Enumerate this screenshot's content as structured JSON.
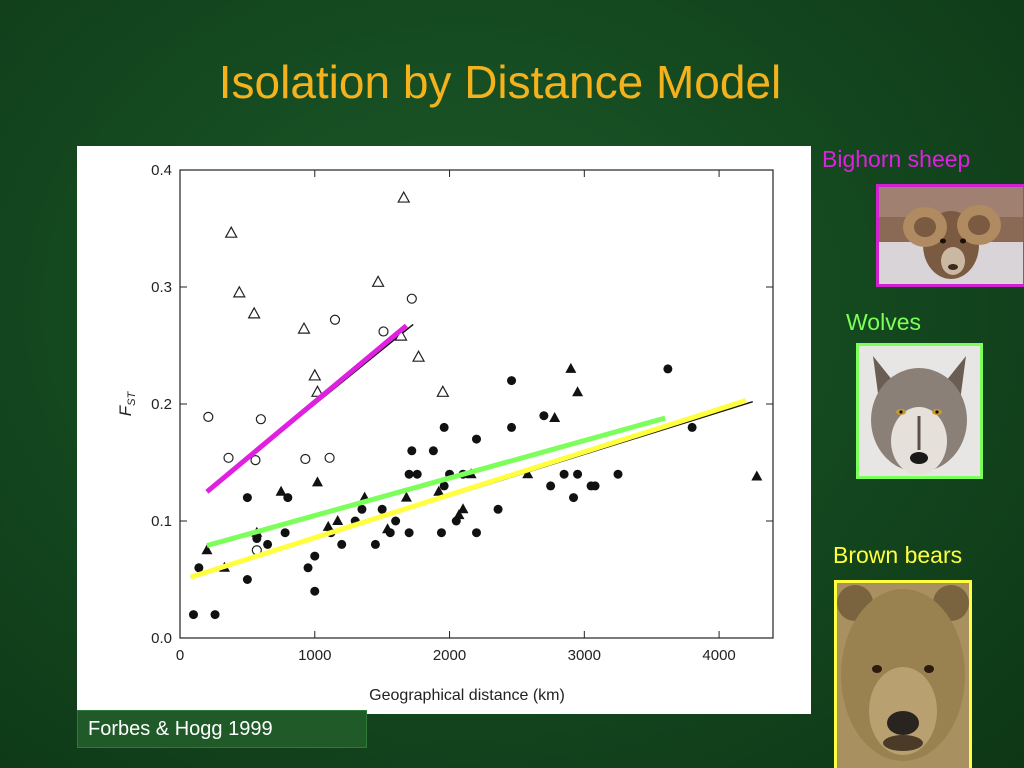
{
  "slide": {
    "title": "Isolation by Distance Model",
    "citation": "Forbes & Hogg 1999"
  },
  "species": [
    {
      "label": "Bighorn sheep",
      "color": "#e020e0",
      "icon": "bighorn-sheep-photo"
    },
    {
      "label": "Wolves",
      "color": "#7cff5a",
      "icon": "wolf-photo"
    },
    {
      "label": "Brown bears",
      "color": "#ffff40",
      "icon": "brown-bear-photo"
    }
  ],
  "chart_data": {
    "type": "scatter",
    "xlabel": "Geographical distance (km)",
    "ylabel": "F",
    "ylabel_subscript": "ST",
    "xlim": [
      0,
      4400
    ],
    "ylim": [
      0,
      0.4
    ],
    "x_ticks": [
      0,
      1000,
      2000,
      3000,
      4000
    ],
    "y_ticks": [
      0.0,
      0.1,
      0.2,
      0.3,
      0.4
    ],
    "x_tick_labels": [
      "0",
      "1000",
      "2000",
      "3000",
      "4000"
    ],
    "y_tick_labels": [
      "0.0",
      "0.1",
      "0.2",
      "0.3",
      "0.4"
    ],
    "series": [
      {
        "marker": "open-circle",
        "points": [
          [
            210,
            0.189
          ],
          [
            360,
            0.154
          ],
          [
            600,
            0.187
          ],
          [
            560,
            0.152
          ],
          [
            930,
            0.153
          ],
          [
            1150,
            0.272
          ],
          [
            1110,
            0.154
          ],
          [
            1510,
            0.262
          ],
          [
            1720,
            0.29
          ],
          [
            570,
            0.075
          ]
        ]
      },
      {
        "marker": "open-triangle",
        "points": [
          [
            380,
            0.346
          ],
          [
            440,
            0.295
          ],
          [
            550,
            0.277
          ],
          [
            920,
            0.264
          ],
          [
            1000,
            0.224
          ],
          [
            1020,
            0.21
          ],
          [
            1470,
            0.304
          ],
          [
            1660,
            0.376
          ],
          [
            1770,
            0.24
          ],
          [
            1950,
            0.21
          ],
          [
            1640,
            0.258
          ]
        ]
      },
      {
        "marker": "filled-circle",
        "points": [
          [
            100,
            0.02
          ],
          [
            260,
            0.02
          ],
          [
            140,
            0.06
          ],
          [
            500,
            0.12
          ],
          [
            500,
            0.05
          ],
          [
            570,
            0.085
          ],
          [
            650,
            0.08
          ],
          [
            780,
            0.09
          ],
          [
            800,
            0.12
          ],
          [
            950,
            0.06
          ],
          [
            1000,
            0.04
          ],
          [
            1000,
            0.07
          ],
          [
            1120,
            0.09
          ],
          [
            1200,
            0.08
          ],
          [
            1300,
            0.1
          ],
          [
            1350,
            0.11
          ],
          [
            1450,
            0.08
          ],
          [
            1500,
            0.11
          ],
          [
            1560,
            0.09
          ],
          [
            1600,
            0.1
          ],
          [
            1700,
            0.09
          ],
          [
            1700,
            0.14
          ],
          [
            1720,
            0.16
          ],
          [
            1760,
            0.14
          ],
          [
            1880,
            0.16
          ],
          [
            1940,
            0.09
          ],
          [
            1960,
            0.18
          ],
          [
            1960,
            0.13
          ],
          [
            2000,
            0.14
          ],
          [
            2050,
            0.1
          ],
          [
            2100,
            0.14
          ],
          [
            2200,
            0.17
          ],
          [
            2200,
            0.09
          ],
          [
            2360,
            0.11
          ],
          [
            2460,
            0.22
          ],
          [
            2460,
            0.18
          ],
          [
            2700,
            0.19
          ],
          [
            2750,
            0.13
          ],
          [
            2850,
            0.14
          ],
          [
            2920,
            0.12
          ],
          [
            2950,
            0.14
          ],
          [
            3050,
            0.13
          ],
          [
            3080,
            0.13
          ],
          [
            3250,
            0.14
          ],
          [
            3620,
            0.23
          ],
          [
            3800,
            0.18
          ]
        ]
      },
      {
        "marker": "filled-triangle",
        "points": [
          [
            200,
            0.075
          ],
          [
            330,
            0.06
          ],
          [
            570,
            0.09
          ],
          [
            750,
            0.125
          ],
          [
            1020,
            0.133
          ],
          [
            1100,
            0.095
          ],
          [
            1170,
            0.1
          ],
          [
            1370,
            0.12
          ],
          [
            1540,
            0.093
          ],
          [
            1680,
            0.12
          ],
          [
            1920,
            0.125
          ],
          [
            2100,
            0.11
          ],
          [
            2070,
            0.105
          ],
          [
            2160,
            0.14
          ],
          [
            2580,
            0.14
          ],
          [
            2780,
            0.188
          ],
          [
            2900,
            0.23
          ],
          [
            2950,
            0.21
          ],
          [
            4280,
            0.138
          ]
        ]
      }
    ],
    "regression_lines": [
      {
        "species": "Bighorn sheep",
        "from": [
          200,
          0.125
        ],
        "to": [
          1680,
          0.267
        ]
      },
      {
        "species": "Wolves",
        "from": [
          200,
          0.079
        ],
        "to": [
          3600,
          0.188
        ]
      },
      {
        "species": "Brown bears",
        "from": [
          80,
          0.052
        ],
        "to": [
          4200,
          0.203
        ]
      }
    ],
    "fitted_lines": [
      {
        "from": [
          200,
          0.125
        ],
        "to": [
          1730,
          0.268
        ]
      },
      {
        "from": [
          80,
          0.052
        ],
        "to": [
          4250,
          0.202
        ]
      }
    ]
  }
}
